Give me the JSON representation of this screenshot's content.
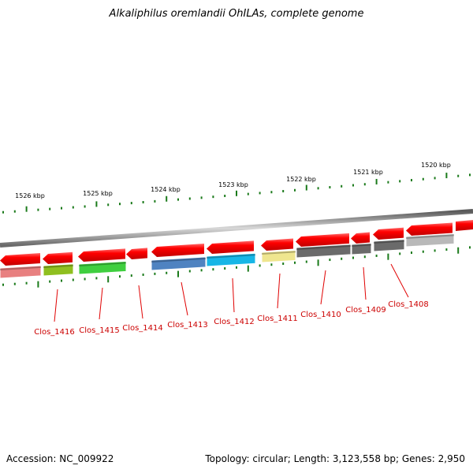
{
  "title": "Alkaliphilus oremlandii OhILAs, complete genome",
  "footer": {
    "accession": "Accession: NC_009922",
    "summary": "Topology: circular; Length: 3,123,558 bp; Genes: 2,950"
  },
  "kbp_labels": [
    "1526 kbp",
    "1525 kbp",
    "1524 kbp",
    "1523 kbp",
    "1522 kbp",
    "1521 kbp",
    "1520 kbp"
  ],
  "gene_labels": [
    "Clos_1416",
    "Clos_1415",
    "Clos_1414",
    "Clos_1413",
    "Clos_1412",
    "Clos_1411",
    "Clos_1410",
    "Clos_1409",
    "Clos_1408"
  ],
  "colors": {
    "cds": "#ff0000",
    "label": "#cc0000",
    "tick": "#1a7a1a",
    "backbone": "#888888",
    "cog": [
      "#e88080",
      "#8fbf1f",
      "#3fcf3f",
      "#4f83c1",
      "#17b6e6",
      "#efe68f",
      "#6b6b6b",
      "#6b6b6b",
      "#b9b9b9"
    ]
  }
}
